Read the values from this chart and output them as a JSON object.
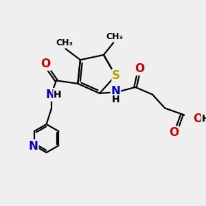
{
  "bg_color": "#efefef",
  "bond_color": "#000000",
  "bond_width": 1.6,
  "atom_colors": {
    "S": "#b8a000",
    "N": "#0000cc",
    "O": "#cc0000",
    "C": "#000000",
    "H": "#000000"
  },
  "font_size": 11,
  "fig_size": [
    3.0,
    3.0
  ],
  "dpi": 100
}
